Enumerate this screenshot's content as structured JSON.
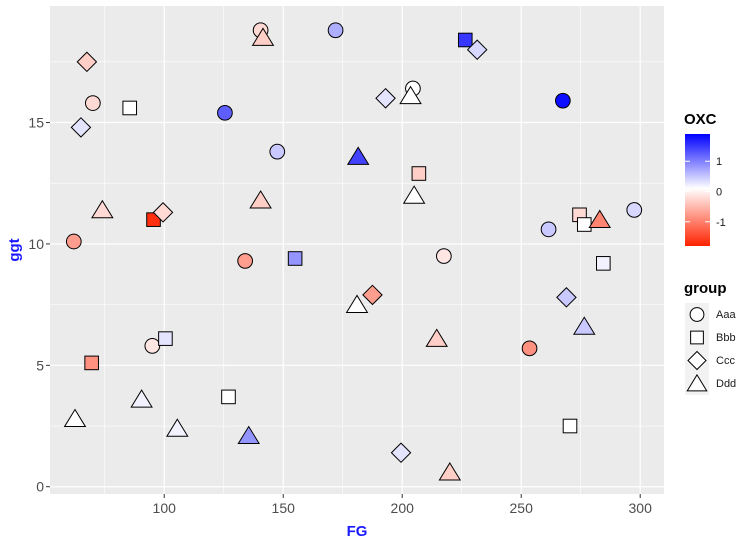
{
  "chart_data": {
    "type": "scatter",
    "xlabel": "FG",
    "ylabel": "ggt",
    "xlim": [
      52,
      310
    ],
    "ylim": [
      -0.3,
      19.8
    ],
    "x_ticks": [
      100,
      150,
      200,
      250,
      300
    ],
    "y_ticks": [
      0,
      5,
      10,
      15
    ],
    "grid": true,
    "legend_position": "right",
    "color_legend": {
      "title": "OXC",
      "range": [
        -1.8,
        1.9
      ],
      "ticks": [
        1,
        0,
        -1
      ],
      "tick_labels": [
        "1",
        "0",
        "-1"
      ],
      "colors": {
        "low": "#ff2200",
        "mid": "#ffffff",
        "high": "#0000ff"
      }
    },
    "shape_legend": {
      "title": "group",
      "items": [
        {
          "label": "Aaa",
          "shape": "circle"
        },
        {
          "label": "Bbb",
          "shape": "square"
        },
        {
          "label": "Ccc",
          "shape": "diamond"
        },
        {
          "label": "Ddd",
          "shape": "triangle"
        }
      ]
    },
    "points": [
      {
        "x": 140.5,
        "y": 18.8,
        "group": "Aaa",
        "oxc": -0.3
      },
      {
        "x": 172,
        "y": 18.8,
        "group": "Aaa",
        "oxc": 0.6
      },
      {
        "x": 204.5,
        "y": 16.4,
        "group": "Aaa",
        "oxc": 0.0
      },
      {
        "x": 70,
        "y": 15.8,
        "group": "Aaa",
        "oxc": -0.3
      },
      {
        "x": 267.5,
        "y": 15.9,
        "group": "Aaa",
        "oxc": 1.8
      },
      {
        "x": 125.5,
        "y": 15.4,
        "group": "Aaa",
        "oxc": 1.2
      },
      {
        "x": 147.5,
        "y": 13.8,
        "group": "Aaa",
        "oxc": 0.4
      },
      {
        "x": 297.5,
        "y": 11.4,
        "group": "Aaa",
        "oxc": 0.3
      },
      {
        "x": 261.5,
        "y": 10.6,
        "group": "Aaa",
        "oxc": 0.4
      },
      {
        "x": 62,
        "y": 10.1,
        "group": "Aaa",
        "oxc": -0.8
      },
      {
        "x": 134,
        "y": 9.3,
        "group": "Aaa",
        "oxc": -0.8
      },
      {
        "x": 217.5,
        "y": 9.5,
        "group": "Aaa",
        "oxc": -0.2
      },
      {
        "x": 95,
        "y": 5.8,
        "group": "Aaa",
        "oxc": -0.2
      },
      {
        "x": 253.5,
        "y": 5.7,
        "group": "Aaa",
        "oxc": -0.9
      },
      {
        "x": 226.5,
        "y": 18.4,
        "group": "Bbb",
        "oxc": 1.5
      },
      {
        "x": 85.5,
        "y": 15.6,
        "group": "Bbb",
        "oxc": 0.0
      },
      {
        "x": 207,
        "y": 12.9,
        "group": "Bbb",
        "oxc": -0.4
      },
      {
        "x": 95.5,
        "y": 11.0,
        "group": "Bbb",
        "oxc": -1.7
      },
      {
        "x": 274.5,
        "y": 11.2,
        "group": "Bbb",
        "oxc": -0.3
      },
      {
        "x": 276.5,
        "y": 10.8,
        "group": "Bbb",
        "oxc": 0.0
      },
      {
        "x": 155,
        "y": 9.4,
        "group": "Bbb",
        "oxc": 0.8
      },
      {
        "x": 284.5,
        "y": 9.2,
        "group": "Bbb",
        "oxc": 0.1
      },
      {
        "x": 100.5,
        "y": 6.1,
        "group": "Bbb",
        "oxc": 0.2
      },
      {
        "x": 69.5,
        "y": 5.1,
        "group": "Bbb",
        "oxc": -0.9
      },
      {
        "x": 127,
        "y": 3.7,
        "group": "Bbb",
        "oxc": 0.0
      },
      {
        "x": 270.5,
        "y": 2.5,
        "group": "Bbb",
        "oxc": 0.0
      },
      {
        "x": 67.5,
        "y": 17.5,
        "group": "Ccc",
        "oxc": -0.4
      },
      {
        "x": 231.5,
        "y": 18.0,
        "group": "Ccc",
        "oxc": 0.3
      },
      {
        "x": 193,
        "y": 16.0,
        "group": "Ccc",
        "oxc": 0.2
      },
      {
        "x": 65,
        "y": 14.8,
        "group": "Ccc",
        "oxc": 0.2
      },
      {
        "x": 99.5,
        "y": 11.3,
        "group": "Ccc",
        "oxc": -0.3
      },
      {
        "x": 187.5,
        "y": 7.9,
        "group": "Ccc",
        "oxc": -0.8
      },
      {
        "x": 269,
        "y": 7.8,
        "group": "Ccc",
        "oxc": 0.4
      },
      {
        "x": 199.5,
        "y": 1.4,
        "group": "Ccc",
        "oxc": 0.2
      },
      {
        "x": 141.5,
        "y": 18.5,
        "group": "Ddd",
        "oxc": -0.4
      },
      {
        "x": 203.5,
        "y": 16.1,
        "group": "Ddd",
        "oxc": 0.0
      },
      {
        "x": 181.5,
        "y": 13.6,
        "group": "Ddd",
        "oxc": 1.4
      },
      {
        "x": 205,
        "y": 12.0,
        "group": "Ddd",
        "oxc": 0.0
      },
      {
        "x": 74,
        "y": 11.4,
        "group": "Ddd",
        "oxc": -0.3
      },
      {
        "x": 140.5,
        "y": 11.8,
        "group": "Ddd",
        "oxc": -0.4
      },
      {
        "x": 283,
        "y": 11.0,
        "group": "Ddd",
        "oxc": -1.0
      },
      {
        "x": 181,
        "y": 7.5,
        "group": "Ddd",
        "oxc": 0.0
      },
      {
        "x": 276.5,
        "y": 6.6,
        "group": "Ddd",
        "oxc": 0.4
      },
      {
        "x": 214.5,
        "y": 6.1,
        "group": "Ddd",
        "oxc": -0.4
      },
      {
        "x": 62.5,
        "y": 2.8,
        "group": "Ddd",
        "oxc": 0.0
      },
      {
        "x": 90.5,
        "y": 3.6,
        "group": "Ddd",
        "oxc": 0.1
      },
      {
        "x": 105.5,
        "y": 2.4,
        "group": "Ddd",
        "oxc": 0.1
      },
      {
        "x": 135.5,
        "y": 2.1,
        "group": "Ddd",
        "oxc": 0.8
      },
      {
        "x": 220,
        "y": 0.6,
        "group": "Ddd",
        "oxc": -0.4
      }
    ]
  }
}
